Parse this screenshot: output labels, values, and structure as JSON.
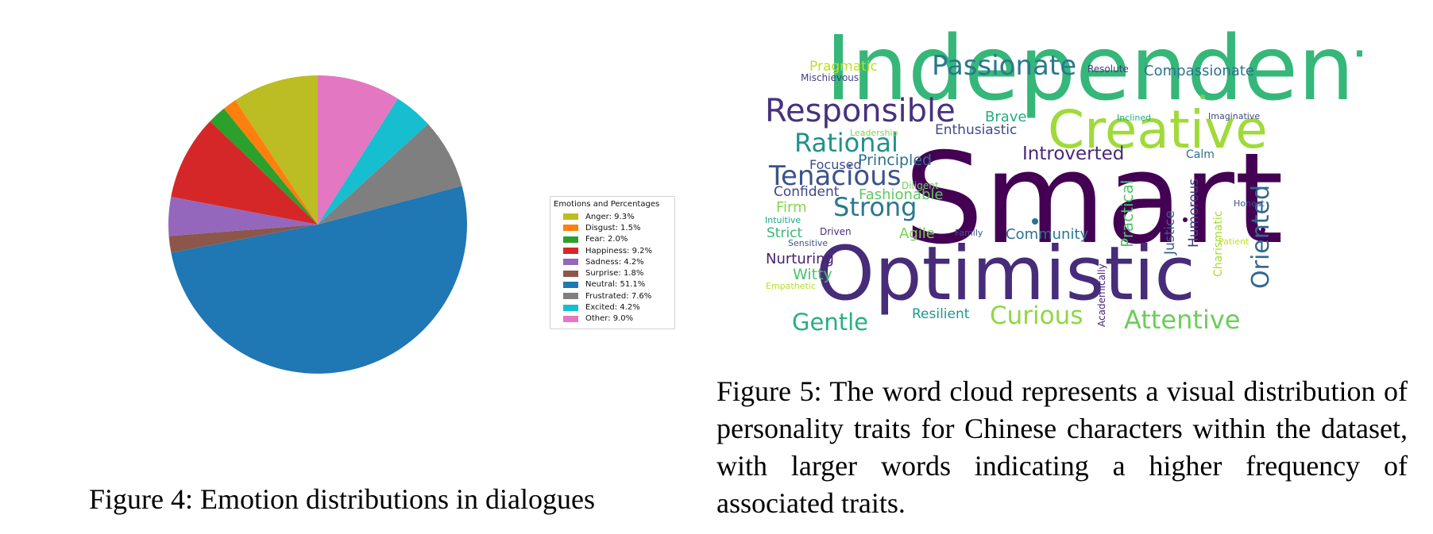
{
  "figure4": {
    "caption": "Figure 4: Emotion distributions in dialogues",
    "chart_data": {
      "type": "pie",
      "start_angle_deg": 90,
      "direction": "counterclockwise",
      "legend_title": "Emotions and Percentages",
      "legend_position": "right",
      "slices": [
        {
          "label": "Anger",
          "value": 9.3,
          "legend": "Anger: 9.3%",
          "color": "#bcbd22"
        },
        {
          "label": "Disgust",
          "value": 1.5,
          "legend": "Disgust: 1.5%",
          "color": "#ff7f0e"
        },
        {
          "label": "Fear",
          "value": 2.0,
          "legend": "Fear: 2.0%",
          "color": "#2ca02c"
        },
        {
          "label": "Happiness",
          "value": 9.2,
          "legend": "Happiness: 9.2%",
          "color": "#d62728"
        },
        {
          "label": "Sadness",
          "value": 4.2,
          "legend": "Sadness: 4.2%",
          "color": "#9467bd"
        },
        {
          "label": "Surprise",
          "value": 1.8,
          "legend": "Surprise: 1.8%",
          "color": "#8c564b"
        },
        {
          "label": "Neutral",
          "value": 51.1,
          "legend": "Neutral: 51.1%",
          "color": "#1f77b4"
        },
        {
          "label": "Frustrated",
          "value": 7.6,
          "legend": "Frustrated: 7.6%",
          "color": "#7f7f7f"
        },
        {
          "label": "Excited",
          "value": 4.2,
          "legend": "Excited: 4.2%",
          "color": "#17becf"
        },
        {
          "label": "Other",
          "value": 9.0,
          "legend": "Other: 9.0%",
          "color": "#e377c2"
        }
      ]
    }
  },
  "figure5": {
    "caption": "Figure 5: The word cloud represents a visual distribution of personality traits for Chinese characters within the dataset, with larger words indicating a higher frequency of associated traits.",
    "words": [
      {
        "text": "Independent",
        "color": "#35b779"
      },
      {
        "text": "Smart",
        "color": "#440154"
      },
      {
        "text": "Optimistic",
        "color": "#472c7a"
      },
      {
        "text": "Creative",
        "color": "#a0da39"
      },
      {
        "text": "Passionate",
        "color": "#2a788e"
      },
      {
        "text": "Responsible",
        "color": "#46327e"
      },
      {
        "text": "Oriented",
        "color": "#31688e"
      },
      {
        "text": "Tenacious",
        "color": "#3b528b"
      },
      {
        "text": "Rational",
        "color": "#21918c"
      },
      {
        "text": "Strong",
        "color": "#2a788e"
      },
      {
        "text": "Attentive",
        "color": "#6ccd5a"
      },
      {
        "text": "Curious",
        "color": "#8fd744"
      },
      {
        "text": "Gentle",
        "color": "#29af7f"
      },
      {
        "text": "Introverted",
        "color": "#482878"
      },
      {
        "text": "Compassionate",
        "color": "#2c728e"
      },
      {
        "text": "Pragmatic",
        "color": "#bddf26"
      },
      {
        "text": "Mischievous",
        "color": "#414487"
      },
      {
        "text": "Resolute",
        "color": "#443983"
      },
      {
        "text": "Brave",
        "color": "#26ad81"
      },
      {
        "text": "Enthusiastic",
        "color": "#3e4a89"
      },
      {
        "text": "Principled",
        "color": "#2d708e"
      },
      {
        "text": "Focused",
        "color": "#3e4c8a"
      },
      {
        "text": "Confident",
        "color": "#404688"
      },
      {
        "text": "Fashionable",
        "color": "#5ec962"
      },
      {
        "text": "Firm",
        "color": "#86d549"
      },
      {
        "text": "Intuitive",
        "color": "#20a486"
      },
      {
        "text": "Strict",
        "color": "#37b878"
      },
      {
        "text": "Driven",
        "color": "#472d7b"
      },
      {
        "text": "Sensitive",
        "color": "#3b528b"
      },
      {
        "text": "Nurturing",
        "color": "#481f70"
      },
      {
        "text": "Witty",
        "color": "#4ac16d"
      },
      {
        "text": "Empathetic",
        "color": "#b5de2b"
      },
      {
        "text": "Agile",
        "color": "#7ad151"
      },
      {
        "text": "Family",
        "color": "#3a548c"
      },
      {
        "text": "Community",
        "color": "#2c728e"
      },
      {
        "text": "Resilient",
        "color": "#1f988b"
      },
      {
        "text": "Practical",
        "color": "#52c569"
      },
      {
        "text": "Justice",
        "color": "#365c8d"
      },
      {
        "text": "Humorous",
        "color": "#433e85"
      },
      {
        "text": "Charismatic",
        "color": "#a5db36"
      },
      {
        "text": "Academically",
        "color": "#482475"
      },
      {
        "text": "Honest",
        "color": "#3b528b"
      },
      {
        "text": "Patient",
        "color": "#c2df23"
      },
      {
        "text": "Calm",
        "color": "#2e6e8e"
      },
      {
        "text": "Imaginative",
        "color": "#3e4989"
      },
      {
        "text": "Inclined",
        "color": "#22a884"
      },
      {
        "text": "Leadership",
        "color": "#7fd34e"
      },
      {
        "text": "Diligent",
        "color": "#73d056"
      }
    ]
  }
}
